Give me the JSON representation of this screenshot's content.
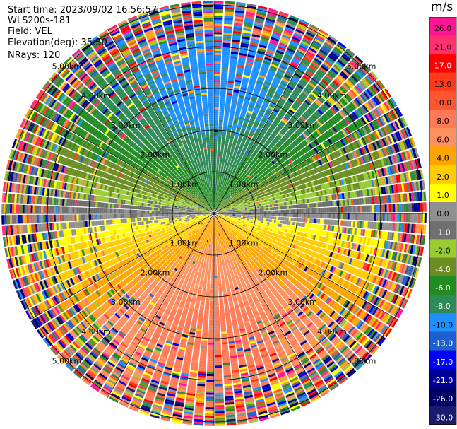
{
  "header": {
    "start_time": "Start time: 2023/09/02 16:56:57",
    "instrument": "WLS200s-181",
    "field": "Field: VEL",
    "elevation": "Elevation(deg): 35.30",
    "nrays": "NRays: 120"
  },
  "colorbar": {
    "unit": "m/s",
    "ticks": [
      "26.0",
      "21.0",
      "17.0",
      "13.0",
      "10.0",
      "8.0",
      "6.0",
      "4.0",
      "2.0",
      "1.0",
      "0.0",
      "-1.0",
      "-2.0",
      "-4.0",
      "-6.0",
      "-8.0",
      "-10.0",
      "-13.0",
      "-17.0",
      "-21.0",
      "-26.0",
      "-30.0"
    ],
    "colors": [
      "#ff1493",
      "#ff3070",
      "#ff0000",
      "#ff3a1a",
      "#ff5530",
      "#ff7a55",
      "#ff9060",
      "#ffa500",
      "#ffcc00",
      "#ffff00",
      "#909090",
      "#707070",
      "#99cc33",
      "#6b8e23",
      "#228b22",
      "#2e8b57",
      "#1e90ff",
      "#1e5fd0",
      "#0000ff",
      "#000099",
      "#000066",
      "#1a1a6e"
    ]
  },
  "chart_data": {
    "type": "ppi",
    "field": "VEL",
    "units": "m/s",
    "n_rays": 120,
    "elevation_deg": 35.3,
    "range_rings_km": [
      1.0,
      2.0,
      3.0,
      4.0,
      5.0
    ],
    "ring_labels": [
      "1.00km",
      "2.00km",
      "3.00km",
      "4.00km",
      "5.00km"
    ],
    "max_range_km": 5.1,
    "value_range": [
      -30.0,
      30.0
    ],
    "pattern": "dipole",
    "toward_azimuth_deg": 180,
    "max_abs_velocity": 8.5
  }
}
